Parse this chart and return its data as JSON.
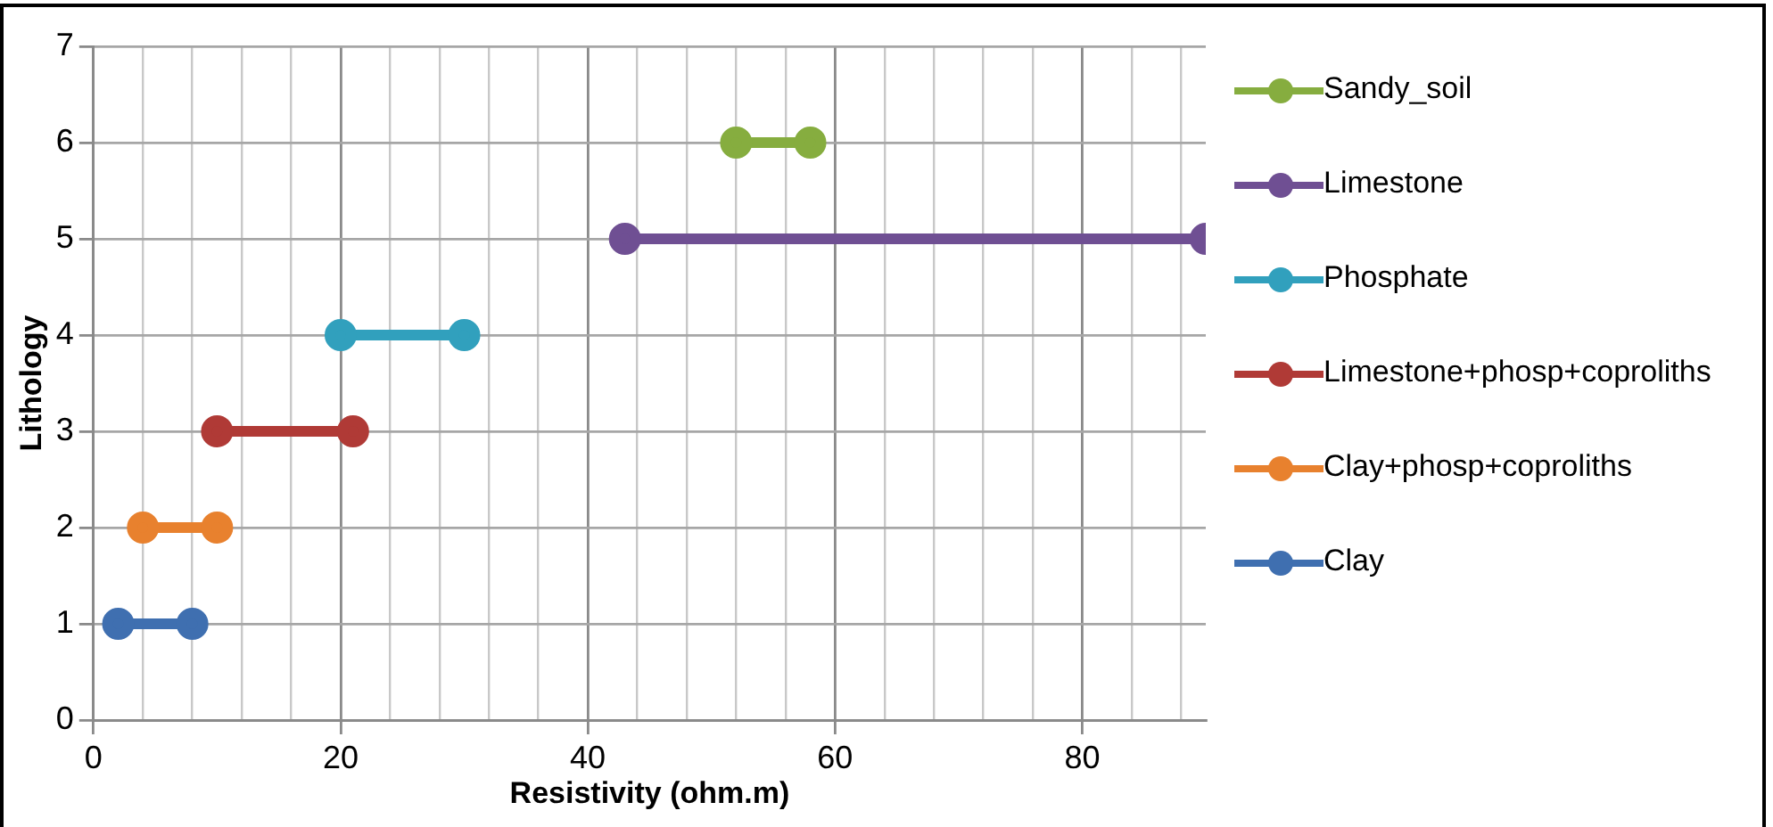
{
  "chart_data": {
    "type": "line",
    "xlabel": "Resistivity (ohm.m)",
    "ylabel": "Lithology",
    "xlim": [
      0,
      90
    ],
    "ylim": [
      0,
      7
    ],
    "xticks": [
      0,
      {
        "value": 4,
        "label": null
      },
      {
        "value": 8,
        "label": null
      },
      {
        "value": 12,
        "label": null
      },
      {
        "value": 16,
        "label": null
      },
      20,
      {
        "value": 24,
        "label": null
      },
      {
        "value": 28,
        "label": null
      },
      {
        "value": 32,
        "label": null
      },
      {
        "value": 36,
        "label": null
      },
      40,
      {
        "value": 44,
        "label": null
      },
      {
        "value": 48,
        "label": null
      },
      {
        "value": 52,
        "label": null
      },
      {
        "value": 56,
        "label": null
      },
      60,
      {
        "value": 64,
        "label": null
      },
      {
        "value": 68,
        "label": null
      },
      {
        "value": 72,
        "label": null
      },
      {
        "value": 76,
        "label": null
      },
      80,
      {
        "value": 84,
        "label": null
      },
      {
        "value": 88,
        "label": null
      }
    ],
    "yticks": [
      0,
      1,
      2,
      3,
      4,
      5,
      6,
      7
    ],
    "grid": true,
    "legend": "right",
    "marker": "circle",
    "line_style": "solid",
    "series": [
      {
        "name": "Clay",
        "color": "#3f6fb0",
        "x": [
          2,
          8
        ],
        "values": [
          1,
          1
        ]
      },
      {
        "name": "Clay+phosp+coproliths",
        "color": "#e8812e",
        "x": [
          4,
          10
        ],
        "values": [
          2,
          2
        ]
      },
      {
        "name": "Limestone+phosp+coproliths",
        "color": "#b03a36",
        "x": [
          10,
          21
        ],
        "values": [
          3,
          3
        ]
      },
      {
        "name": "Phosphate",
        "color": "#31a0bd",
        "x": [
          20,
          30
        ],
        "values": [
          4,
          4
        ]
      },
      {
        "name": "Limestone",
        "color": "#6f4f93",
        "x": [
          43,
          90
        ],
        "values": [
          5,
          5
        ]
      },
      {
        "name": "Sandy_soil",
        "color": "#86ad3f",
        "x": [
          52,
          58
        ],
        "values": [
          6,
          6
        ]
      }
    ]
  }
}
